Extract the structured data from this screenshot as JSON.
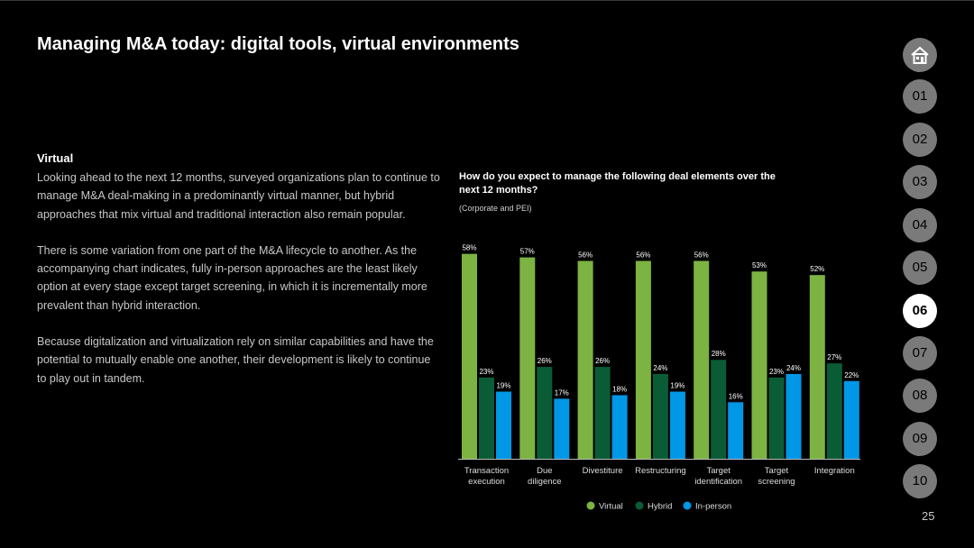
{
  "page": {
    "title": "Managing M&A today: digital tools, virtual environments",
    "page_number": "25"
  },
  "body": {
    "heading": "Virtual",
    "paragraphs": [
      "Looking ahead to the next 12 months, surveyed organizations plan to continue to manage M&A deal-making in a predominantly virtual manner, but hybrid approaches that mix virtual and traditional interaction also remain popular.",
      "There is some variation from one part of the M&A lifecycle to another. As the accompanying chart indicates, fully in-person approaches are the least likely option at every stage except target screening, in which it is incrementally more prevalent than hybrid interaction.",
      "Because digitalization and virtualization rely on similar capabilities and have the potential to mutually enable one another, their development is likely to continue to play out in tandem."
    ]
  },
  "nav": {
    "home_icon": "home-icon",
    "items": [
      "01",
      "02",
      "03",
      "04",
      "05",
      "06",
      "07",
      "08",
      "09",
      "10"
    ],
    "active": "06"
  },
  "colors": {
    "virtual": "#7cb342",
    "hybrid": "#0a5c36",
    "in_person": "#0097e6",
    "active_nav": "#ffffff",
    "nav": "#7a7a7a"
  },
  "chart_data": {
    "type": "bar",
    "title": "How do you expect to manage the following deal elements over the next 12 months?",
    "subtitle": "(Corporate and PEI)",
    "categories": [
      [
        "Transaction",
        "execution"
      ],
      [
        "Due",
        "diligence"
      ],
      [
        "Divestiture"
      ],
      [
        "Restructuring"
      ],
      [
        "Target",
        "identification"
      ],
      [
        "Target",
        "screening"
      ],
      [
        "Integration"
      ]
    ],
    "series": [
      {
        "name": "Virtual",
        "color": "#7cb342",
        "values": [
          58,
          57,
          56,
          56,
          56,
          53,
          52
        ]
      },
      {
        "name": "Hybrid",
        "color": "#0a5c36",
        "values": [
          23,
          26,
          26,
          24,
          28,
          23,
          27
        ]
      },
      {
        "name": "In-person",
        "color": "#0097e6",
        "values": [
          19,
          17,
          18,
          19,
          16,
          24,
          22
        ]
      }
    ],
    "ylim": [
      0,
      60
    ],
    "grid": false,
    "legend": "bottom-center",
    "value_suffix": "%"
  }
}
